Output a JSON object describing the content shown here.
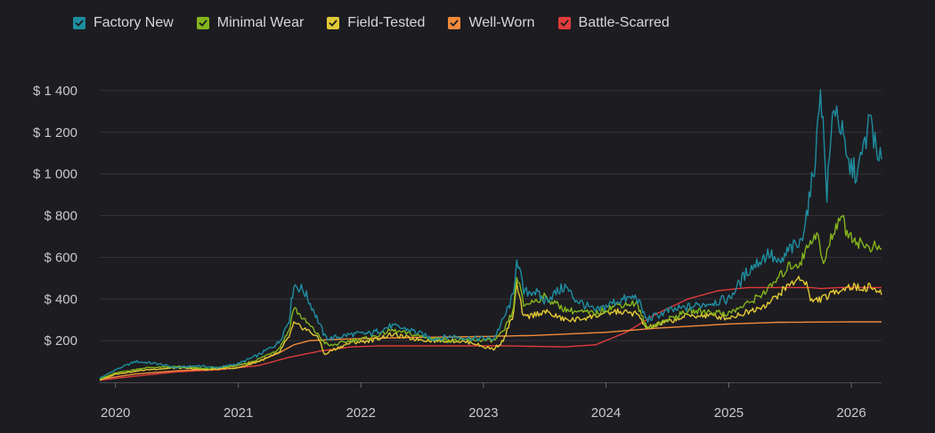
{
  "chart_data": {
    "type": "line",
    "title": "",
    "xlabel": "",
    "ylabel": "",
    "ylim": [
      0,
      1600
    ],
    "y_ticks": [
      200,
      400,
      600,
      800,
      1000,
      1200,
      1400
    ],
    "y_tick_labels": [
      "$ 200",
      "$ 400",
      "$ 600",
      "$ 800",
      "$ 1 000",
      "$ 1 200",
      "$ 1 400"
    ],
    "x_range": [
      "2019-11-15",
      "2026-04-01"
    ],
    "x_ticks": [
      "2020-01-01",
      "2021-01-01",
      "2022-01-01",
      "2023-01-01",
      "2024-01-01",
      "2025-01-01",
      "2026-01-01"
    ],
    "x_tick_labels": [
      "2020",
      "2021",
      "2022",
      "2023",
      "2024",
      "2025",
      "2026"
    ],
    "grid": "horizontal",
    "legend_position": "top-left",
    "series": [
      {
        "name": "Factory New",
        "color": "#1e8ea0",
        "x": [
          "2019-11-15",
          "2020-01-01",
          "2020-03-01",
          "2020-05-01",
          "2020-07-01",
          "2020-09-01",
          "2020-11-01",
          "2021-01-01",
          "2021-03-01",
          "2021-05-01",
          "2021-06-01",
          "2021-06-15",
          "2021-07-15",
          "2021-08-15",
          "2021-09-15",
          "2021-10-01",
          "2021-12-01",
          "2022-02-01",
          "2022-04-01",
          "2022-06-01",
          "2022-08-01",
          "2022-10-01",
          "2022-12-01",
          "2023-02-01",
          "2023-03-01",
          "2023-04-01",
          "2023-04-10",
          "2023-05-01",
          "2023-06-01",
          "2023-07-01",
          "2023-09-01",
          "2023-10-01",
          "2023-12-01",
          "2024-02-01",
          "2024-04-01",
          "2024-05-01",
          "2024-07-01",
          "2024-09-01",
          "2024-11-01",
          "2025-01-01",
          "2025-03-01",
          "2025-05-01",
          "2025-06-01",
          "2025-07-01",
          "2025-08-01",
          "2025-09-01",
          "2025-09-20",
          "2025-10-01",
          "2025-10-20",
          "2025-11-10",
          "2025-12-01",
          "2025-12-20",
          "2026-01-20",
          "2026-02-10",
          "2026-03-01",
          "2026-03-20",
          "2026-04-01"
        ],
        "y": [
          20,
          60,
          100,
          90,
          70,
          80,
          70,
          90,
          130,
          190,
          300,
          470,
          440,
          340,
          220,
          210,
          230,
          235,
          270,
          250,
          210,
          220,
          210,
          210,
          300,
          420,
          610,
          430,
          440,
          390,
          460,
          400,
          340,
          390,
          410,
          300,
          340,
          360,
          380,
          400,
          540,
          620,
          560,
          640,
          660,
          900,
          1150,
          1450,
          900,
          1350,
          1220,
          1050,
          1000,
          1150,
          1280,
          1050,
          1070
        ]
      },
      {
        "name": "Minimal Wear",
        "color": "#84b51c",
        "x": [
          "2019-11-15",
          "2020-01-01",
          "2020-04-01",
          "2020-07-01",
          "2020-10-01",
          "2021-01-01",
          "2021-03-01",
          "2021-05-01",
          "2021-06-01",
          "2021-06-15",
          "2021-07-15",
          "2021-08-15",
          "2021-09-15",
          "2021-10-01",
          "2021-12-01",
          "2022-02-01",
          "2022-04-01",
          "2022-06-01",
          "2022-08-01",
          "2022-10-01",
          "2022-12-01",
          "2023-02-01",
          "2023-03-01",
          "2023-04-01",
          "2023-04-10",
          "2023-05-01",
          "2023-07-01",
          "2023-09-01",
          "2023-10-01",
          "2023-12-01",
          "2024-02-01",
          "2024-04-01",
          "2024-05-01",
          "2024-07-01",
          "2024-09-01",
          "2024-11-01",
          "2025-01-01",
          "2025-03-01",
          "2025-05-01",
          "2025-07-01",
          "2025-08-01",
          "2025-09-01",
          "2025-09-20",
          "2025-10-10",
          "2025-11-01",
          "2025-12-01",
          "2025-12-15",
          "2026-01-15",
          "2026-02-15",
          "2026-03-15",
          "2026-04-01"
        ],
        "y": [
          15,
          45,
          70,
          75,
          65,
          80,
          110,
          160,
          250,
          360,
          300,
          250,
          190,
          175,
          200,
          215,
          250,
          230,
          210,
          200,
          205,
          200,
          240,
          350,
          520,
          370,
          410,
          350,
          340,
          330,
          370,
          380,
          260,
          300,
          340,
          340,
          330,
          380,
          450,
          560,
          570,
          680,
          720,
          560,
          690,
          810,
          730,
          680,
          650,
          650,
          640
        ]
      },
      {
        "name": "Field-Tested",
        "color": "#e2c934",
        "x": [
          "2019-11-15",
          "2020-01-01",
          "2020-04-01",
          "2020-07-01",
          "2020-10-01",
          "2021-01-01",
          "2021-03-01",
          "2021-05-01",
          "2021-06-01",
          "2021-06-15",
          "2021-07-15",
          "2021-08-15",
          "2021-09-01",
          "2021-09-15",
          "2021-10-01",
          "2021-12-01",
          "2022-02-01",
          "2022-04-01",
          "2022-06-01",
          "2022-08-01",
          "2022-10-01",
          "2022-12-01",
          "2023-01-01",
          "2023-02-01",
          "2023-03-01",
          "2023-04-01",
          "2023-04-10",
          "2023-05-01",
          "2023-07-01",
          "2023-09-01",
          "2023-10-01",
          "2023-12-01",
          "2024-02-01",
          "2024-04-01",
          "2024-05-01",
          "2024-07-01",
          "2024-09-01",
          "2024-11-01",
          "2025-01-01",
          "2025-03-01",
          "2025-05-01",
          "2025-07-01",
          "2025-08-01",
          "2025-08-20",
          "2025-09-01",
          "2025-10-01",
          "2025-11-01",
          "2025-12-01",
          "2026-01-01",
          "2026-02-01",
          "2026-03-01",
          "2026-04-01"
        ],
        "y": [
          10,
          40,
          60,
          70,
          60,
          70,
          100,
          140,
          220,
          280,
          260,
          230,
          200,
          130,
          150,
          190,
          200,
          230,
          210,
          200,
          200,
          190,
          170,
          160,
          200,
          330,
          470,
          310,
          340,
          300,
          300,
          320,
          340,
          330,
          260,
          290,
          320,
          320,
          310,
          340,
          380,
          470,
          500,
          480,
          390,
          400,
          420,
          450,
          460,
          450,
          460,
          420
        ]
      },
      {
        "name": "Well-Worn",
        "color": "#f28a3c",
        "x": [
          "2019-11-15",
          "2020-03-01",
          "2020-07-01",
          "2020-11-01",
          "2021-03-01",
          "2021-05-01",
          "2021-06-15",
          "2021-08-01",
          "2021-10-01",
          "2022-01-01",
          "2022-06-01",
          "2023-01-01",
          "2023-06-01",
          "2024-01-01",
          "2024-06-01",
          "2025-01-01",
          "2025-06-01",
          "2026-01-01",
          "2026-04-01"
        ],
        "y": [
          15,
          40,
          55,
          65,
          100,
          140,
          180,
          200,
          205,
          210,
          215,
          220,
          225,
          240,
          260,
          280,
          288,
          290,
          290
        ]
      },
      {
        "name": "Battle-Scarred",
        "color": "#e03b3b",
        "x": [
          "2019-11-15",
          "2020-03-01",
          "2020-07-01",
          "2020-11-01",
          "2021-03-01",
          "2021-06-01",
          "2021-09-01",
          "2021-12-01",
          "2022-03-01",
          "2022-09-01",
          "2023-03-01",
          "2023-09-01",
          "2023-12-01",
          "2024-03-01",
          "2024-06-01",
          "2024-09-01",
          "2024-12-01",
          "2025-03-01",
          "2025-06-01",
          "2025-09-01",
          "2025-10-01",
          "2025-12-01",
          "2026-02-01",
          "2026-04-01"
        ],
        "y": [
          10,
          30,
          50,
          60,
          80,
          120,
          150,
          170,
          175,
          175,
          175,
          170,
          180,
          240,
          330,
          400,
          440,
          455,
          455,
          455,
          450,
          455,
          455,
          455
        ]
      }
    ]
  }
}
